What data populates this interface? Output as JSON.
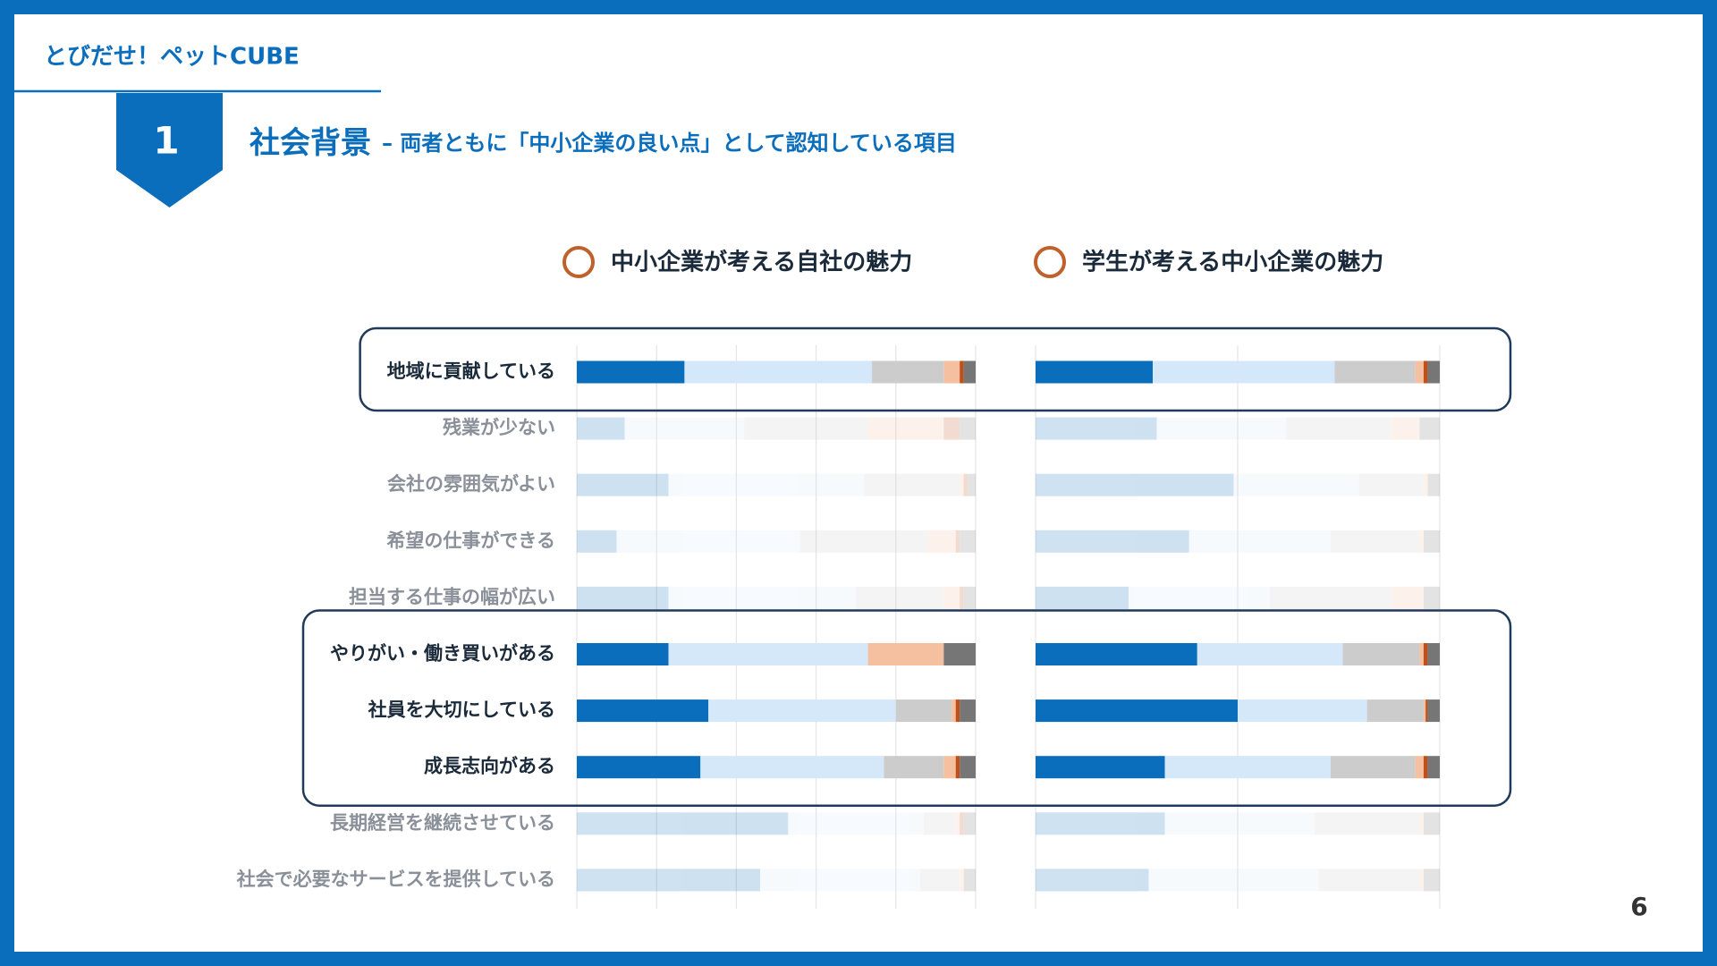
{
  "header": {
    "brand": "とびだせ！ペットCUBE",
    "section_number": "1",
    "title": "社会背景",
    "subtitle": "– 両者ともに「中小企業の良い点」として認知している項目"
  },
  "page_number": "6",
  "chart_data": [
    {
      "type": "bar",
      "orientation": "horizontal",
      "stacked": true,
      "title": "中小企業が考える自社の魅力",
      "title_marker_color": "#c0602a",
      "categories": [
        "地域に貢献している",
        "残業が少ない",
        "会社の雰囲気がよい",
        "希望の仕事ができる",
        "担当する仕事の幅が広い",
        "やりがい・働き買いがある",
        "社員を大切にしている",
        "成長志向がある",
        "長期経営を継続させている",
        "社会で必要なサービスを提供している"
      ],
      "series": [
        {
          "color": "#0a6ebd",
          "values": [
            27,
            12,
            23,
            10,
            23,
            23,
            33,
            31,
            53,
            46
          ]
        },
        {
          "color": "#d5e8f9",
          "values": [
            47,
            30,
            49,
            46,
            47,
            50,
            47,
            46,
            34,
            40
          ]
        },
        {
          "color": "#cccccc",
          "values": [
            18,
            31,
            24,
            32,
            22,
            0,
            14,
            15,
            8,
            10
          ]
        },
        {
          "color": "#f4c0a0",
          "values": [
            4,
            19,
            1,
            7,
            4,
            19,
            1,
            3,
            1,
            1
          ]
        },
        {
          "color": "#c0501a",
          "values": [
            1,
            4,
            1,
            1,
            1,
            0,
            1,
            1,
            1,
            0
          ]
        },
        {
          "color": "#767676",
          "values": [
            3,
            4,
            2,
            4,
            3,
            8,
            4,
            4,
            3,
            3
          ]
        }
      ],
      "xlim": [
        0,
        100
      ],
      "xticks": [
        0,
        20,
        40,
        60,
        80,
        100
      ],
      "grid": true,
      "highlight": [
        0,
        5,
        6,
        7
      ]
    },
    {
      "type": "bar",
      "orientation": "horizontal",
      "stacked": true,
      "title": "学生が考える中小企業の魅力",
      "title_marker_color": "#c0602a",
      "series": [
        {
          "color": "#0a6ebd",
          "values": [
            29,
            30,
            49,
            38,
            23,
            40,
            50,
            32,
            32,
            28
          ]
        },
        {
          "color": "#d5e8f9",
          "values": [
            45,
            32,
            31,
            35,
            35,
            36,
            32,
            41,
            37,
            42
          ]
        },
        {
          "color": "#cccccc",
          "values": [
            20,
            26,
            16,
            22,
            30,
            19,
            14,
            21,
            26,
            25
          ]
        },
        {
          "color": "#f4c0a0",
          "values": [
            2,
            7,
            1,
            1,
            8,
            1,
            0.5,
            2,
            1,
            1
          ]
        },
        {
          "color": "#c0501a",
          "values": [
            1,
            0,
            0,
            0,
            0,
            1,
            0.5,
            1,
            0,
            0
          ]
        },
        {
          "color": "#767676",
          "values": [
            3,
            5,
            3,
            4,
            4,
            3,
            3,
            3,
            4,
            4
          ]
        }
      ],
      "xlim": [
        0,
        100
      ],
      "xticks": [
        0,
        50,
        100
      ],
      "grid": true,
      "highlight": [
        0,
        5,
        6,
        7
      ]
    }
  ]
}
